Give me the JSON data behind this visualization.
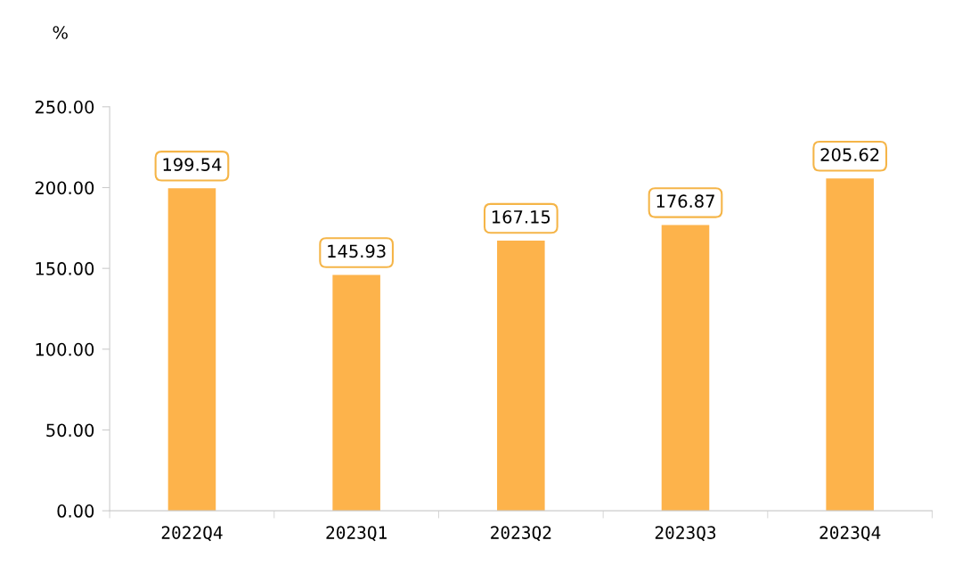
{
  "chart_data": {
    "type": "bar",
    "ylabel": "%",
    "categories": [
      "2022Q4",
      "2023Q1",
      "2023Q2",
      "2023Q3",
      "2023Q4"
    ],
    "values": [
      199.54,
      145.93,
      167.15,
      176.87,
      205.62
    ],
    "color": "#fdb34b",
    "ylim": [
      0,
      250
    ],
    "yticks": [
      {
        "value": 0,
        "label": "0.00"
      },
      {
        "value": 50,
        "label": "50.00"
      },
      {
        "value": 100,
        "label": "100.00"
      },
      {
        "value": 150,
        "label": "150.00"
      },
      {
        "value": 200,
        "label": "200.00"
      },
      {
        "value": 250,
        "label": "250.00"
      }
    ],
    "data_labels": true,
    "grid": false,
    "legend": false
  }
}
